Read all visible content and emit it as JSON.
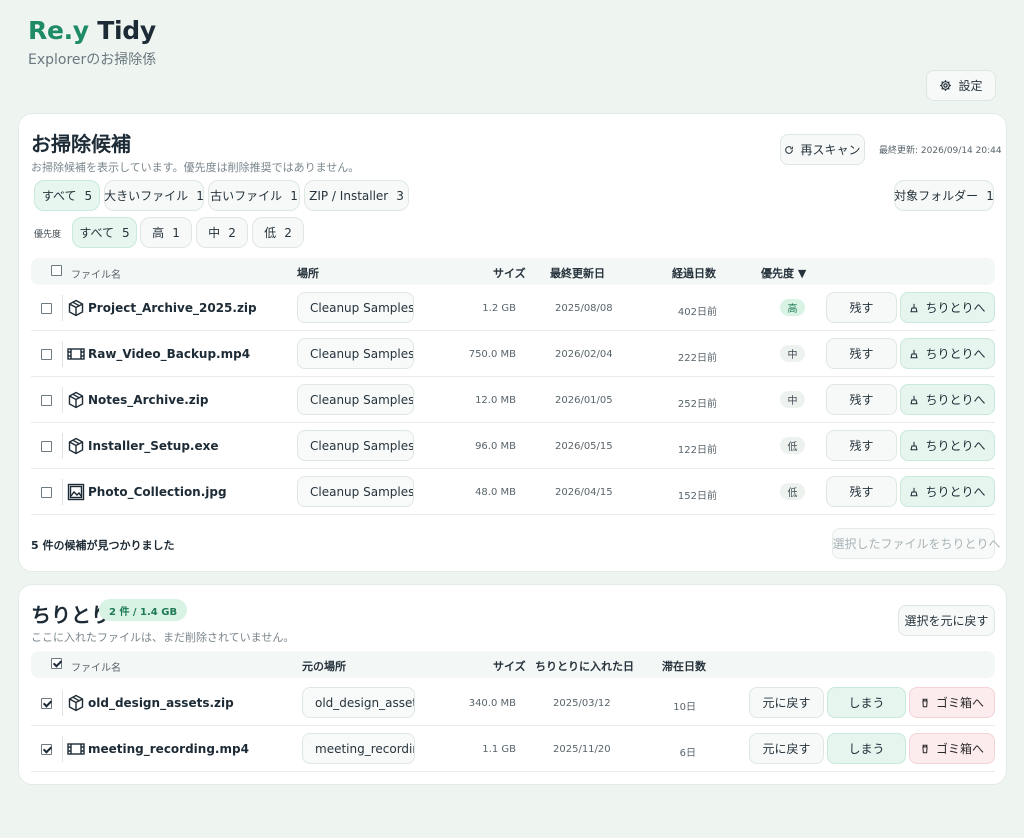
{
  "app": {
    "brand_re": "Re.y",
    "brand_tidy": "Tidy",
    "subtitle": "Explorerのお掃除係"
  },
  "header": {
    "settings_label": "設定"
  },
  "candidates": {
    "title": "お掃除候補",
    "description": "お掃除候補を表示しています。優先度は削除推奨ではありません。",
    "rescan_label": "再スキャン",
    "last_updated": "最終更新: 2026/09/14 20:44",
    "filters": [
      {
        "label": "すべて",
        "count": "5",
        "active": true
      },
      {
        "label": "大きいファイル",
        "count": "1",
        "active": false
      },
      {
        "label": "古いファイル",
        "count": "1",
        "active": false
      },
      {
        "label": "ZIP / Installer",
        "count": "3",
        "active": false
      }
    ],
    "target_folder": {
      "label": "対象フォルダー",
      "count": "1"
    },
    "priority_label": "優先度",
    "priority_filters": [
      {
        "label": "すべて",
        "count": "5",
        "active": true
      },
      {
        "label": "高",
        "count": "1",
        "active": false
      },
      {
        "label": "中",
        "count": "2",
        "active": false
      },
      {
        "label": "低",
        "count": "2",
        "active": false
      }
    ],
    "columns": {
      "name": "ファイル名",
      "location": "場所",
      "size": "サイズ",
      "modified": "最終更新日",
      "elapsed": "経過日数",
      "priority": "優先度 ▼"
    },
    "keep_label": "残す",
    "move_label": "ちりとりへ",
    "rows": [
      {
        "name": "Project_Archive_2025.zip",
        "icon": "package-icon",
        "location": "Cleanup Samples",
        "size": "1.2 GB",
        "modified": "2025/08/08",
        "elapsed": "402日前",
        "priority": "高",
        "priority_level": "high"
      },
      {
        "name": "Raw_Video_Backup.mp4",
        "icon": "film-icon",
        "location": "Cleanup Samples",
        "size": "750.0 MB",
        "modified": "2026/02/04",
        "elapsed": "222日前",
        "priority": "中",
        "priority_level": "mid"
      },
      {
        "name": "Notes_Archive.zip",
        "icon": "package-icon",
        "location": "Cleanup Samples",
        "size": "12.0 MB",
        "modified": "2026/01/05",
        "elapsed": "252日前",
        "priority": "中",
        "priority_level": "mid"
      },
      {
        "name": "Installer_Setup.exe",
        "icon": "package-icon",
        "location": "Cleanup Samples",
        "size": "96.0 MB",
        "modified": "2026/05/15",
        "elapsed": "122日前",
        "priority": "低",
        "priority_level": "low"
      },
      {
        "name": "Photo_Collection.jpg",
        "icon": "image-icon",
        "location": "Cleanup Samples",
        "size": "48.0 MB",
        "modified": "2026/04/15",
        "elapsed": "152日前",
        "priority": "低",
        "priority_level": "low"
      }
    ],
    "found_text": "5 件の候補が見つかりました",
    "move_selected_label": "選択したファイルをちりとりへ"
  },
  "dustpan": {
    "title": "ちりとり",
    "badge": "2 件 / 1.4 GB",
    "description": "ここに入れたファイルは、まだ削除されていません。",
    "restore_selected_label": "選択を元に戻す",
    "columns": {
      "name": "ファイル名",
      "origin": "元の場所",
      "size": "サイズ",
      "added": "ちりとりに入れた日",
      "days": "滞在日数"
    },
    "restore_label": "元に戻す",
    "store_label": "しまう",
    "trash_label": "ゴミ箱へ",
    "rows": [
      {
        "name": "old_design_assets.zip",
        "icon": "package-icon",
        "origin": "old_design_assets",
        "size": "340.0 MB",
        "added": "2025/03/12",
        "days": "10日",
        "checked": true
      },
      {
        "name": "meeting_recording.mp4",
        "icon": "film-icon",
        "origin": "meeting_recording",
        "size": "1.1 GB",
        "added": "2025/11/20",
        "days": "6日",
        "checked": true
      }
    ]
  },
  "colors": {
    "accent": "#1f8a66",
    "background": "#eef5f1",
    "priority_high_bg": "#d8f2e4",
    "trash_bg": "#fdeced"
  }
}
